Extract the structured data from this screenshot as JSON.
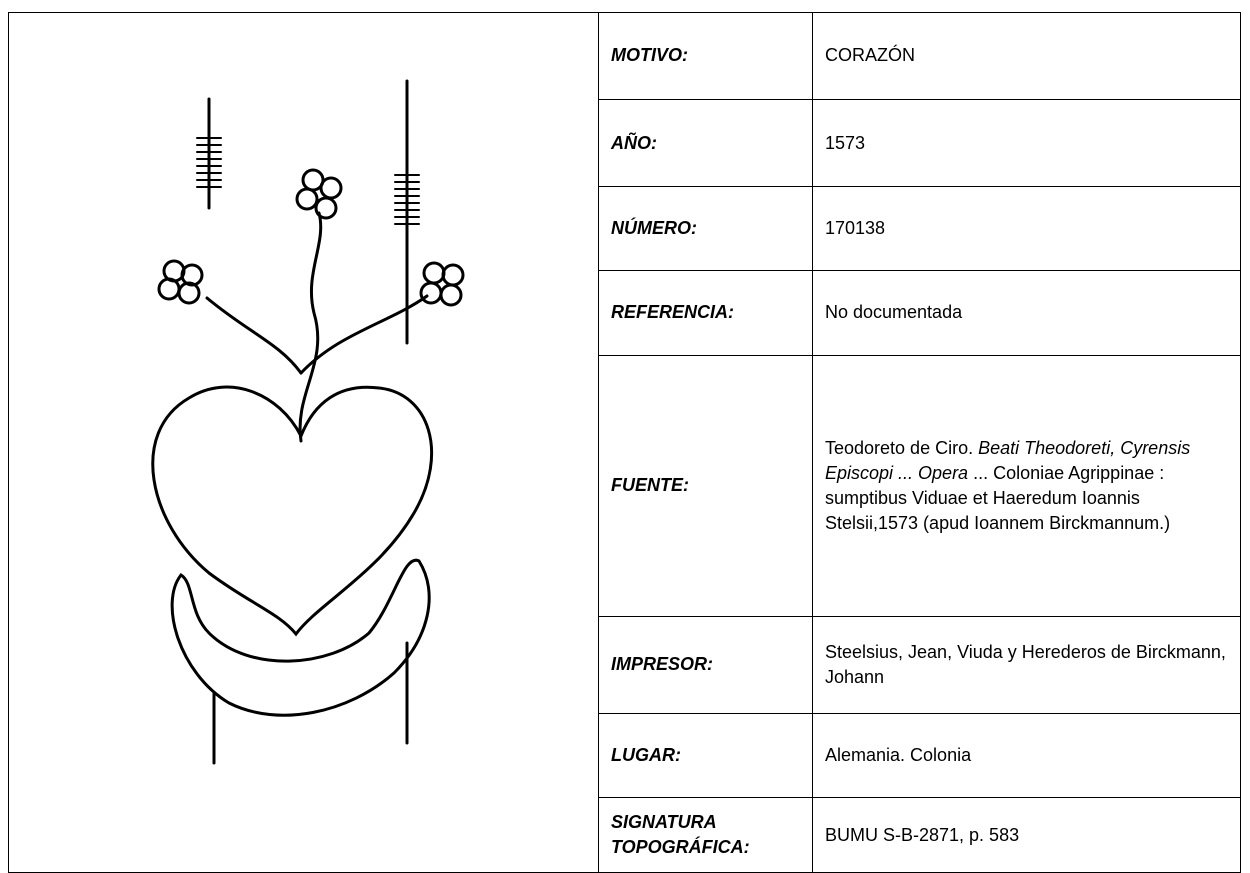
{
  "rows": [
    {
      "label": "MOTIVO:",
      "value": "CORAZÓN"
    },
    {
      "label": "AÑO:",
      "value": "1573"
    },
    {
      "label": "NÚMERO:",
      "value": "170138"
    },
    {
      "label": "REFERENCIA:",
      "value": "No documentada"
    },
    {
      "label": "FUENTE:",
      "value_parts": [
        "Teodoreto de Ciro.",
        "Beati Theodoreti, Cyrensis Episcopi ... Opera",
        "... Coloniae Agrippinae : sumptibus Viduae et Haeredum Ioannis Stelsii,1573 (apud Ioannem Birckmannum.)"
      ]
    },
    {
      "label": "IMPRESOR:",
      "value": "Steelsius, Jean, Viuda y Herederos de Birckmann, Johann"
    },
    {
      "label": "LUGAR:",
      "value": "Alemania. Colonia"
    },
    {
      "label": "SIGNATURA TOPOGRÁFICA:",
      "value": "BUMU S-B-2871, p. 583"
    }
  ]
}
